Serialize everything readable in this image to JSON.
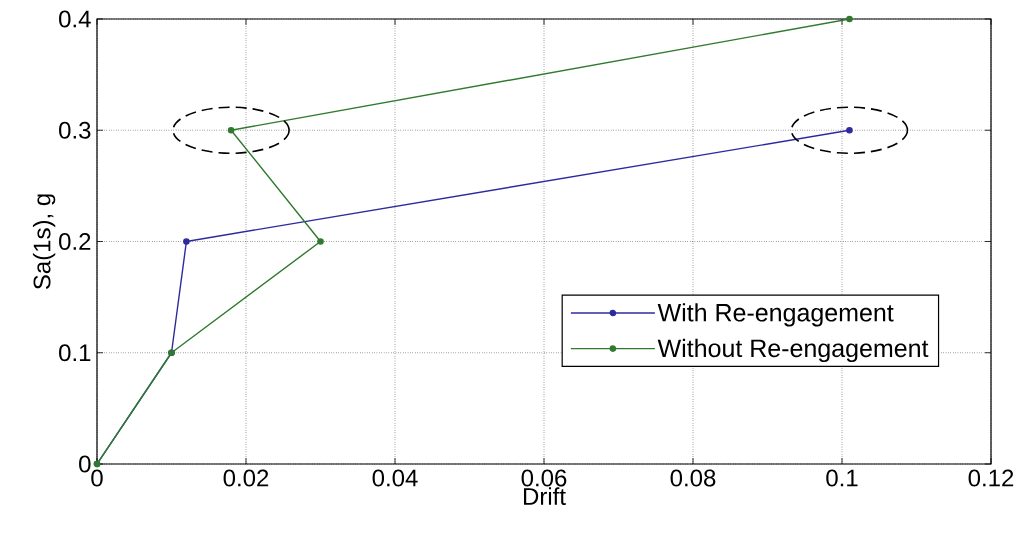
{
  "chart_data": {
    "type": "line",
    "xlabel": "Drift",
    "ylabel": "Sa(1s), g",
    "series": [
      {
        "name": "With Re-engagement",
        "color": "#2b2b9e",
        "x": [
          0,
          0.01,
          0.012,
          0.101
        ],
        "values": [
          0,
          0.1,
          0.2,
          0.3
        ]
      },
      {
        "name": "Without Re-engagement",
        "color": "#2f7a2f",
        "x": [
          0,
          0.01,
          0.03,
          0.018,
          0.101
        ],
        "values": [
          0,
          0.1,
          0.2,
          0.3,
          0.4
        ]
      }
    ],
    "xlim": [
      0,
      0.12
    ],
    "ylim": [
      0,
      0.4
    ],
    "xticks": [
      0,
      0.02,
      0.04,
      0.06,
      0.08,
      0.1,
      0.12
    ],
    "yticks": [
      0,
      0.1,
      0.2,
      0.3,
      0.4
    ],
    "grid": true,
    "legend": "bottom right",
    "marker": "circle",
    "line_style": "solid"
  }
}
